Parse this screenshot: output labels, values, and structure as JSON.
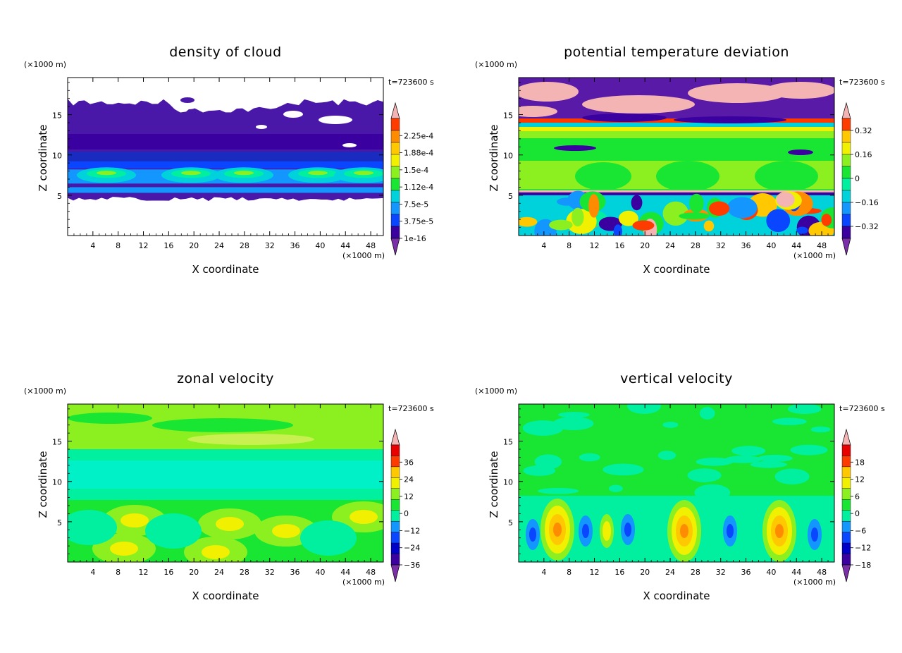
{
  "chart_data": [
    {
      "type": "heatmap",
      "title": "density of cloud",
      "xlabel": "X coordinate",
      "ylabel": "Z coordinate",
      "x_unit": "(×1000 m)",
      "y_unit": "(×1000 m)",
      "time_label": "t=723600 s",
      "x_ticks": [
        "4",
        "8",
        "12",
        "16",
        "20",
        "24",
        "28",
        "32",
        "36",
        "40",
        "44",
        "48"
      ],
      "y_ticks": [
        "5",
        "10",
        "15"
      ],
      "xlim": [
        0,
        50
      ],
      "ylim": [
        0,
        19.6
      ],
      "colorbar_labels": [
        "2.25e-4",
        "1.88e-4",
        "1.5e-4",
        "1.12e-4",
        "7.5e-5",
        "3.75e-5",
        "1e-16"
      ],
      "description_levels": "cloud layer between z≈5 and z≈17, highest density near z≈7-8"
    },
    {
      "type": "heatmap",
      "title": "potential temperature deviation",
      "xlabel": "X coordinate",
      "ylabel": "Z coordinate",
      "x_unit": "(×1000 m)",
      "y_unit": "(×1000 m)",
      "time_label": "t=723600 s",
      "x_ticks": [
        "4",
        "8",
        "12",
        "16",
        "20",
        "24",
        "28",
        "32",
        "36",
        "40",
        "44",
        "48"
      ],
      "y_ticks": [
        "5",
        "10",
        "15"
      ],
      "xlim": [
        0,
        50
      ],
      "ylim": [
        0,
        19.6
      ],
      "colorbar_labels": [
        "0.32",
        "0.16",
        "0",
        "−0.16",
        "−0.32"
      ]
    },
    {
      "type": "heatmap",
      "title": "zonal velocity",
      "xlabel": "X coordinate",
      "ylabel": "Z coordinate",
      "x_unit": "(×1000 m)",
      "y_unit": "(×1000 m)",
      "time_label": "t=723600 s",
      "x_ticks": [
        "4",
        "8",
        "12",
        "16",
        "20",
        "24",
        "28",
        "32",
        "36",
        "40",
        "44",
        "48"
      ],
      "y_ticks": [
        "5",
        "10",
        "15"
      ],
      "xlim": [
        0,
        50
      ],
      "ylim": [
        0,
        19.6
      ],
      "colorbar_labels": [
        "36",
        "24",
        "12",
        "0",
        "−12",
        "−24",
        "−36"
      ]
    },
    {
      "type": "heatmap",
      "title": "vertical velocity",
      "xlabel": "X coordinate",
      "ylabel": "Z coordinate",
      "x_unit": "(×1000 m)",
      "y_unit": "(×1000 m)",
      "time_label": "t=723600 s",
      "x_ticks": [
        "4",
        "8",
        "12",
        "16",
        "20",
        "24",
        "28",
        "32",
        "36",
        "40",
        "44",
        "48"
      ],
      "y_ticks": [
        "5",
        "10",
        "15"
      ],
      "xlim": [
        0,
        50
      ],
      "ylim": [
        0,
        19.6
      ],
      "colorbar_labels": [
        "18",
        "12",
        "6",
        "0",
        "−6",
        "−12",
        "−18"
      ]
    }
  ],
  "palette": [
    "#7a2fa8",
    "#3a00a0",
    "#0000c8",
    "#0a46ff",
    "#1496ff",
    "#00d2dc",
    "#00f0a0",
    "#18e632",
    "#8cf020",
    "#f0f000",
    "#ffc800",
    "#ff8c00",
    "#ff3c00",
    "#e60000",
    "#f5b4b4"
  ]
}
